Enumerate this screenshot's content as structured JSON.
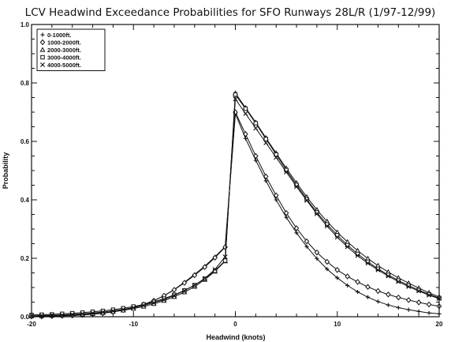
{
  "chart_data": {
    "type": "line",
    "title": "LCV Headwind Exceedance Probabilities for SFO Runways 28L/R (1/97-12/99)",
    "xlabel": "Headwind (knots)",
    "ylabel": "Probability",
    "xlim": [
      -20,
      20
    ],
    "ylim": [
      0.0,
      1.0
    ],
    "xticks": [
      -20,
      -10,
      0,
      10,
      20
    ],
    "xtick_labels": [
      "-20",
      "-10",
      "0",
      "10",
      "20"
    ],
    "yticks": [
      0.0,
      0.2,
      0.4,
      0.6,
      0.8,
      1.0
    ],
    "ytick_labels": [
      "0.0",
      "0.2",
      "0.4",
      "0.6",
      "0.8",
      "1.0"
    ],
    "legend_position": "top-left",
    "x": [
      -20,
      -19,
      -18,
      -17,
      -16,
      -15,
      -14,
      -13,
      -12,
      -11,
      -10,
      -9,
      -8,
      -7,
      -6,
      -5,
      -4,
      -3,
      -2,
      -1,
      0,
      1,
      2,
      3,
      4,
      5,
      6,
      7,
      8,
      9,
      10,
      11,
      12,
      13,
      14,
      15,
      16,
      17,
      18,
      19,
      20
    ],
    "series": [
      {
        "name": "0-1000ft.",
        "marker": "plus",
        "values": [
          0.001,
          0.001,
          0.002,
          0.003,
          0.004,
          0.006,
          0.009,
          0.012,
          0.017,
          0.023,
          0.031,
          0.042,
          0.055,
          0.072,
          0.093,
          0.118,
          0.145,
          0.173,
          0.205,
          0.24,
          0.695,
          0.61,
          0.535,
          0.465,
          0.4,
          0.34,
          0.287,
          0.24,
          0.199,
          0.163,
          0.133,
          0.107,
          0.085,
          0.067,
          0.052,
          0.04,
          0.031,
          0.024,
          0.018,
          0.013,
          0.01
        ]
      },
      {
        "name": "1000-2000ft.",
        "marker": "diamond",
        "values": [
          0.001,
          0.001,
          0.002,
          0.003,
          0.004,
          0.006,
          0.009,
          0.012,
          0.017,
          0.023,
          0.031,
          0.042,
          0.055,
          0.072,
          0.092,
          0.116,
          0.142,
          0.17,
          0.202,
          0.238,
          0.7,
          0.625,
          0.55,
          0.48,
          0.415,
          0.355,
          0.303,
          0.258,
          0.22,
          0.188,
          0.16,
          0.138,
          0.119,
          0.102,
          0.088,
          0.076,
          0.066,
          0.057,
          0.049,
          0.042,
          0.036
        ]
      },
      {
        "name": "2000-3000ft.",
        "marker": "triangle",
        "values": [
          0.002,
          0.003,
          0.004,
          0.005,
          0.006,
          0.008,
          0.01,
          0.013,
          0.017,
          0.022,
          0.028,
          0.035,
          0.044,
          0.055,
          0.068,
          0.084,
          0.103,
          0.127,
          0.155,
          0.19,
          0.765,
          0.715,
          0.665,
          0.612,
          0.56,
          0.508,
          0.458,
          0.41,
          0.366,
          0.326,
          0.289,
          0.256,
          0.226,
          0.199,
          0.175,
          0.153,
          0.133,
          0.115,
          0.098,
          0.082,
          0.068
        ]
      },
      {
        "name": "3000-4000ft.",
        "marker": "square",
        "values": [
          0.006,
          0.007,
          0.008,
          0.01,
          0.012,
          0.014,
          0.017,
          0.02,
          0.024,
          0.029,
          0.035,
          0.042,
          0.051,
          0.062,
          0.075,
          0.09,
          0.108,
          0.13,
          0.157,
          0.192,
          0.76,
          0.712,
          0.662,
          0.608,
          0.555,
          0.502,
          0.451,
          0.402,
          0.357,
          0.316,
          0.279,
          0.245,
          0.215,
          0.188,
          0.164,
          0.143,
          0.124,
          0.107,
          0.091,
          0.077,
          0.064
        ]
      },
      {
        "name": "4000-5000ft.",
        "marker": "x",
        "values": [
          0.003,
          0.004,
          0.005,
          0.006,
          0.008,
          0.01,
          0.013,
          0.016,
          0.02,
          0.025,
          0.031,
          0.039,
          0.048,
          0.059,
          0.073,
          0.089,
          0.108,
          0.131,
          0.162,
          0.205,
          0.745,
          0.695,
          0.645,
          0.595,
          0.545,
          0.495,
          0.445,
          0.398,
          0.352,
          0.31,
          0.272,
          0.239,
          0.209,
          0.183,
          0.16,
          0.139,
          0.12,
          0.103,
          0.088,
          0.074,
          0.062
        ]
      }
    ]
  }
}
